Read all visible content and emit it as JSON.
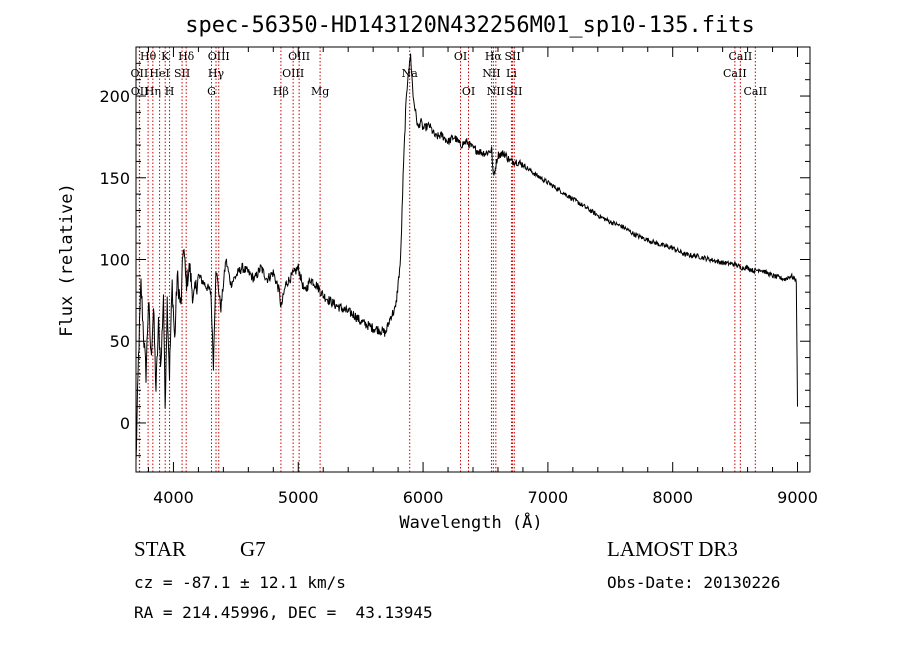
{
  "chart_data": {
    "type": "line",
    "title": "spec-56350-HD143120N432256M01_sp10-135.fits",
    "xlabel": "Wavelength (Å)",
    "ylabel": "Flux (relative)",
    "xlim": [
      3700,
      9100
    ],
    "ylim": [
      -30,
      230
    ],
    "xticks": [
      4000,
      5000,
      6000,
      7000,
      8000,
      9000
    ],
    "yticks": [
      0,
      50,
      100,
      150,
      200
    ],
    "series": [
      {
        "name": "flux",
        "x": [
          3700,
          3720,
          3740,
          3760,
          3780,
          3800,
          3820,
          3840,
          3860,
          3880,
          3900,
          3920,
          3933,
          3950,
          3968,
          3990,
          4010,
          4030,
          4060,
          4080,
          4101,
          4130,
          4160,
          4200,
          4250,
          4300,
          4320,
          4340,
          4380,
          4420,
          4460,
          4500,
          4550,
          4600,
          4650,
          4700,
          4750,
          4800,
          4850,
          4861,
          4900,
          4950,
          5000,
          5050,
          5100,
          5150,
          5200,
          5250,
          5300,
          5350,
          5400,
          5450,
          5500,
          5550,
          5600,
          5650,
          5700,
          5740,
          5780,
          5800,
          5820,
          5840,
          5860,
          5880,
          5893,
          5900,
          5920,
          5940,
          5960,
          5980,
          6000,
          6050,
          6100,
          6150,
          6200,
          6250,
          6300,
          6350,
          6400,
          6450,
          6500,
          6550,
          6563,
          6600,
          6650,
          6700,
          6750,
          6800,
          6900,
          7000,
          7100,
          7200,
          7300,
          7400,
          7500,
          7600,
          7700,
          7800,
          7900,
          8000,
          8100,
          8200,
          8300,
          8400,
          8500,
          8550,
          8600,
          8650,
          8700,
          8800,
          8900,
          8950,
          8990,
          9000
        ],
        "y": [
          -25,
          40,
          85,
          55,
          30,
          75,
          40,
          70,
          20,
          60,
          35,
          80,
          10,
          75,
          30,
          85,
          50,
          90,
          70,
          110,
          85,
          95,
          75,
          90,
          85,
          80,
          35,
          95,
          70,
          100,
          85,
          90,
          95,
          92,
          88,
          95,
          88,
          92,
          80,
          70,
          85,
          90,
          95,
          80,
          88,
          84,
          78,
          75,
          72,
          70,
          68,
          66,
          62,
          60,
          58,
          57,
          55,
          65,
          70,
          85,
          100,
          150,
          190,
          215,
          220,
          225,
          200,
          190,
          180,
          185,
          180,
          182,
          175,
          176,
          172,
          175,
          170,
          172,
          168,
          166,
          165,
          167,
          150,
          164,
          165,
          160,
          160,
          158,
          152,
          147,
          142,
          137,
          132,
          127,
          123,
          120,
          115,
          112,
          109,
          107,
          103,
          102,
          100,
          98,
          97,
          95,
          95,
          93,
          94,
          90,
          88,
          90,
          87,
          10
        ]
      }
    ],
    "line_markers": [
      {
        "label": "OII",
        "wavelength": 3727,
        "row": 1
      },
      {
        "label": "OII",
        "wavelength": 3729,
        "row": 2
      },
      {
        "label": "Hθ",
        "wavelength": 3797,
        "row": 0
      },
      {
        "label": "Hη",
        "wavelength": 3835,
        "row": 2
      },
      {
        "label": "HeI",
        "wavelength": 3889,
        "row": 1
      },
      {
        "label": "K",
        "wavelength": 3934,
        "row": 0
      },
      {
        "label": "H",
        "wavelength": 3969,
        "row": 2
      },
      {
        "label": "SII",
        "wavelength": 4069,
        "row": 1
      },
      {
        "label": "Hδ",
        "wavelength": 4102,
        "row": 0
      },
      {
        "label": "G",
        "wavelength": 4305,
        "row": 2
      },
      {
        "label": "Hγ",
        "wavelength": 4341,
        "row": 1
      },
      {
        "label": "OIII",
        "wavelength": 4363,
        "row": 0
      },
      {
        "label": "Hβ",
        "wavelength": 4861,
        "row": 2
      },
      {
        "label": "OIII",
        "wavelength": 4959,
        "row": 1
      },
      {
        "label": "OIII",
        "wavelength": 5007,
        "row": 0
      },
      {
        "label": "Mg",
        "wavelength": 5175,
        "row": 2
      },
      {
        "label": "Na",
        "wavelength": 5893,
        "row": 1
      },
      {
        "label": "OI",
        "wavelength": 6300,
        "row": 0
      },
      {
        "label": "OI",
        "wavelength": 6364,
        "row": 2
      },
      {
        "label": "NII",
        "wavelength": 6548,
        "row": 1
      },
      {
        "label": "Hα",
        "wavelength": 6563,
        "row": 0
      },
      {
        "label": "NII",
        "wavelength": 6583,
        "row": 2
      },
      {
        "label": "Li",
        "wavelength": 6708,
        "row": 1
      },
      {
        "label": "SII",
        "wavelength": 6717,
        "row": 0
      },
      {
        "label": "SII",
        "wavelength": 6731,
        "row": 2
      },
      {
        "label": "CaII",
        "wavelength": 8498,
        "row": 1
      },
      {
        "label": "CaII",
        "wavelength": 8542,
        "row": 0
      },
      {
        "label": "CaII",
        "wavelength": 8662,
        "row": 2
      }
    ]
  },
  "footer": {
    "object_class": "STAR",
    "subclass": "G7",
    "cz": "cz = -87.1 ± 12.1 km/s",
    "coords": "RA = 214.45996, DEC =  43.13945",
    "survey": "LAMOST DR3",
    "obs_date": "Obs-Date: 20130226"
  }
}
